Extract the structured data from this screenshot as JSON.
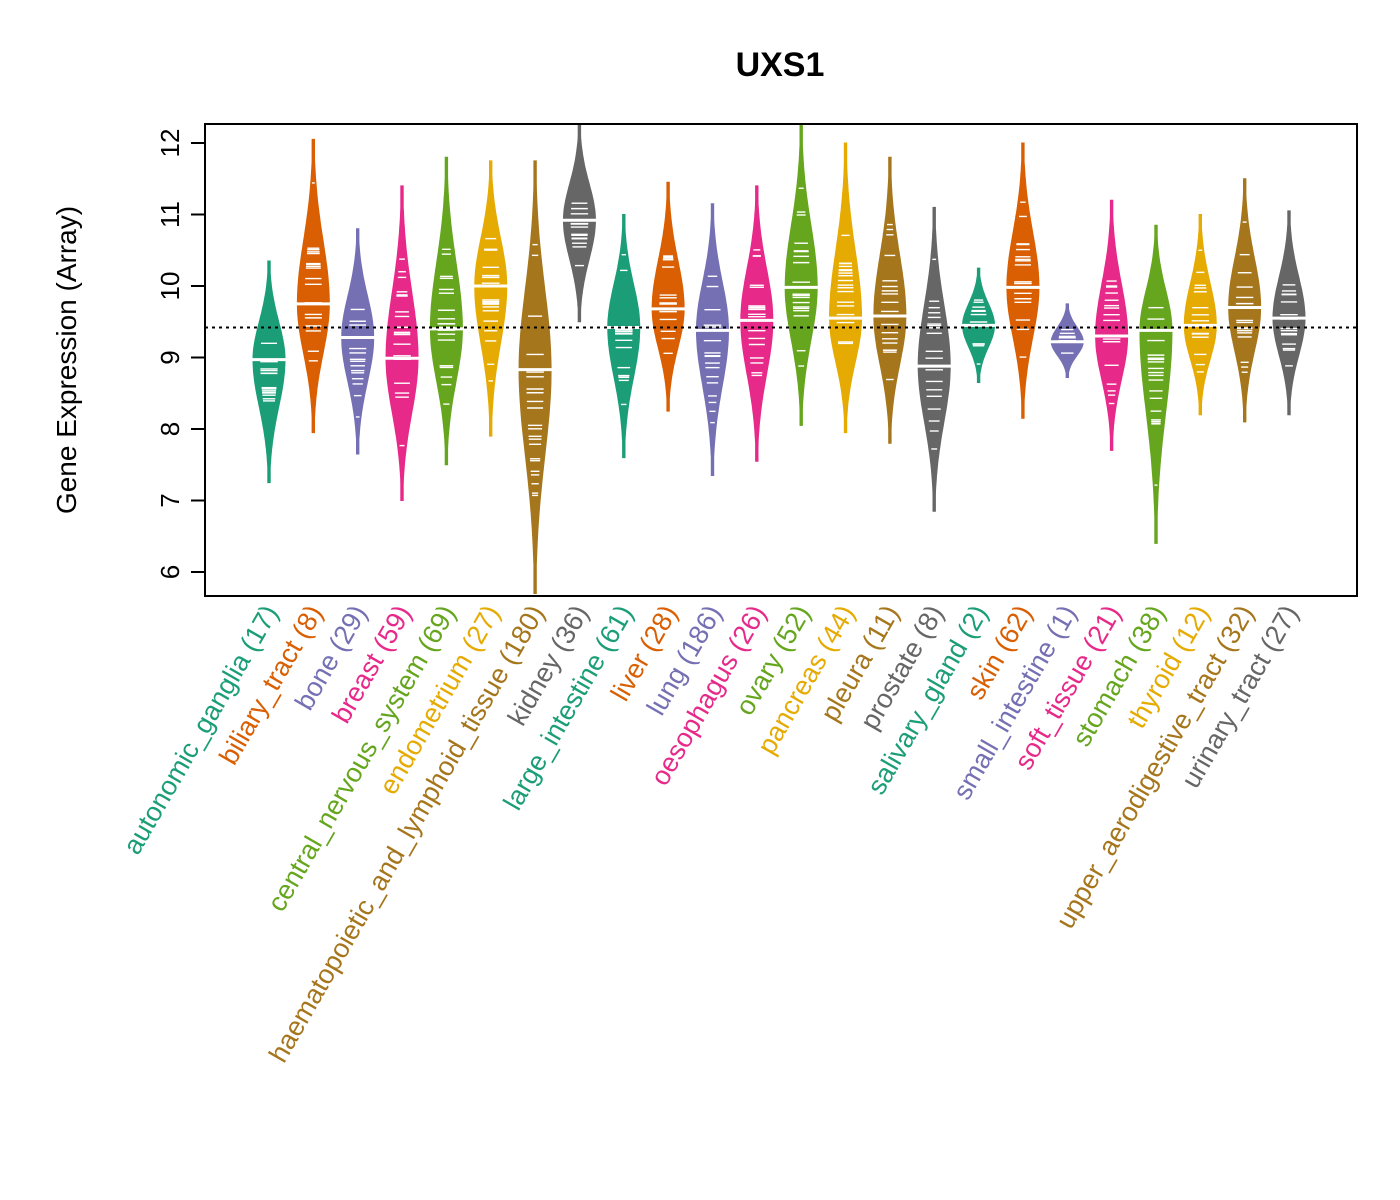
{
  "chart_data": {
    "type": "violin",
    "title": "UXS1",
    "ylabel": "Gene Expression (Array)",
    "xlabel": "",
    "ylim": [
      5.65,
      12.25
    ],
    "yticks": [
      6,
      7,
      8,
      9,
      10,
      11,
      12
    ],
    "reference_line": 9.42,
    "categories": [
      {
        "label": "autonomic_ganglia",
        "n": "(17)",
        "color": "#1B9E77",
        "min": 7.25,
        "max": 10.35,
        "median": 8.97
      },
      {
        "label": "biliary_tract",
        "n": "(8)",
        "color": "#D95F02",
        "min": 7.95,
        "max": 12.05,
        "median": 9.75
      },
      {
        "label": "bone",
        "n": "(29)",
        "color": "#7570B3",
        "min": 7.65,
        "max": 10.8,
        "median": 9.28
      },
      {
        "label": "breast",
        "n": "(59)",
        "color": "#E7298A",
        "min": 7.0,
        "max": 11.4,
        "median": 8.99
      },
      {
        "label": "central_nervous_system",
        "n": "(69)",
        "color": "#66A61E",
        "min": 7.5,
        "max": 11.8,
        "median": 9.4
      },
      {
        "label": "endometrium",
        "n": "(27)",
        "color": "#E6AB02",
        "min": 7.9,
        "max": 11.75,
        "median": 10.0
      },
      {
        "label": "haematopoietic_and_lymphoid_tissue",
        "n": "(180)",
        "color": "#A6761D",
        "min": 5.7,
        "max": 11.75,
        "median": 8.83
      },
      {
        "label": "kidney",
        "n": "(36)",
        "color": "#666666",
        "min": 9.5,
        "max": 12.25,
        "median": 10.92
      },
      {
        "label": "large_intestine",
        "n": "(61)",
        "color": "#1B9E77",
        "min": 7.6,
        "max": 11.0,
        "median": 9.42
      },
      {
        "label": "liver",
        "n": "(28)",
        "color": "#D95F02",
        "min": 8.25,
        "max": 11.45,
        "median": 9.68
      },
      {
        "label": "lung",
        "n": "(186)",
        "color": "#7570B3",
        "min": 7.35,
        "max": 11.15,
        "median": 9.38
      },
      {
        "label": "oesophagus",
        "n": "(26)",
        "color": "#E7298A",
        "min": 7.55,
        "max": 11.4,
        "median": 9.52
      },
      {
        "label": "ovary",
        "n": "(52)",
        "color": "#66A61E",
        "min": 8.05,
        "max": 12.25,
        "median": 9.98
      },
      {
        "label": "pancreas",
        "n": "(44)",
        "color": "#E6AB02",
        "min": 7.95,
        "max": 12.0,
        "median": 9.55
      },
      {
        "label": "pleura",
        "n": "(11)",
        "color": "#A6761D",
        "min": 7.8,
        "max": 11.8,
        "median": 9.58
      },
      {
        "label": "prostate",
        "n": "(8)",
        "color": "#666666",
        "min": 6.85,
        "max": 11.1,
        "median": 8.88
      },
      {
        "label": "salivary_gland",
        "n": "(2)",
        "color": "#1B9E77",
        "min": 8.65,
        "max": 10.25,
        "median": 9.45
      },
      {
        "label": "skin",
        "n": "(62)",
        "color": "#D95F02",
        "min": 8.15,
        "max": 12.0,
        "median": 9.98
      },
      {
        "label": "small_intestine",
        "n": "(1)",
        "color": "#7570B3",
        "min": 8.72,
        "max": 9.75,
        "median": 9.22
      },
      {
        "label": "soft_tissue",
        "n": "(21)",
        "color": "#E7298A",
        "min": 7.7,
        "max": 11.2,
        "median": 9.3
      },
      {
        "label": "stomach",
        "n": "(38)",
        "color": "#66A61E",
        "min": 6.4,
        "max": 10.85,
        "median": 9.38
      },
      {
        "label": "thyroid",
        "n": "(12)",
        "color": "#E6AB02",
        "min": 8.2,
        "max": 11.0,
        "median": 9.45
      },
      {
        "label": "upper_aerodigestive_tract",
        "n": "(32)",
        "color": "#A6761D",
        "min": 8.1,
        "max": 11.5,
        "median": 9.7
      },
      {
        "label": "urinary_tract",
        "n": "(27)",
        "color": "#666666",
        "min": 8.2,
        "max": 11.05,
        "median": 9.55
      }
    ]
  }
}
